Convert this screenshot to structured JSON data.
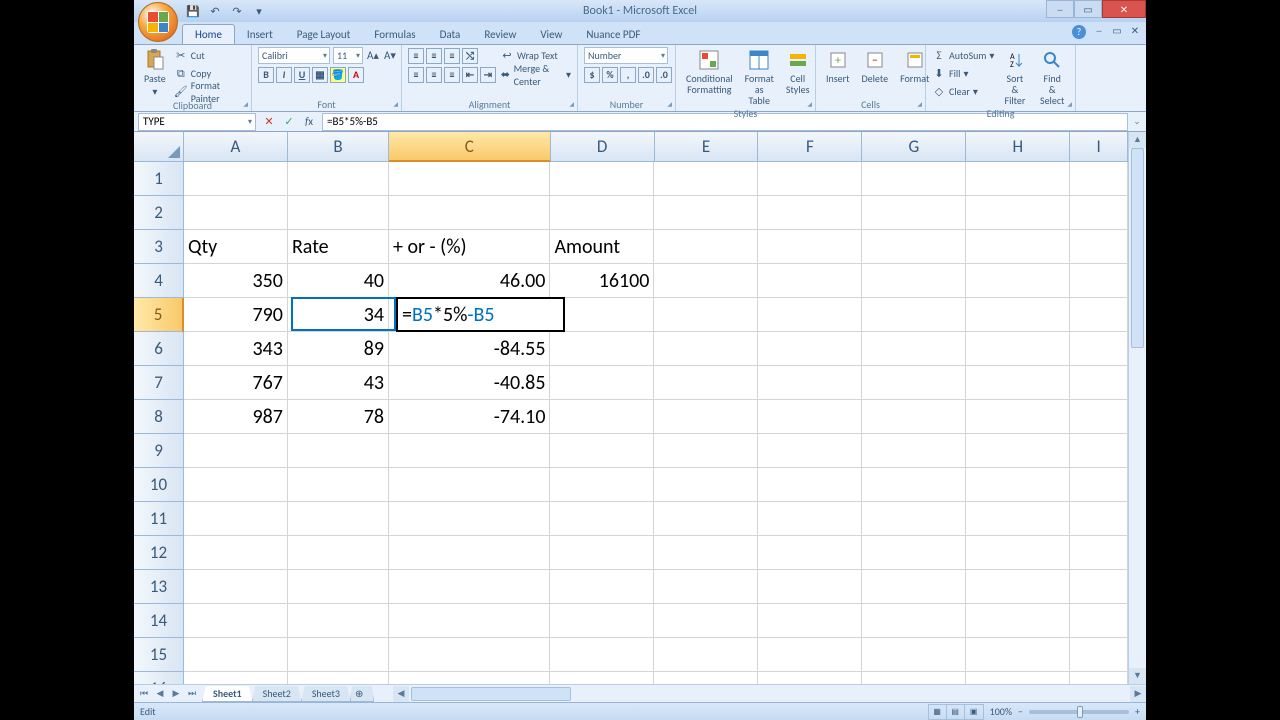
{
  "window": {
    "title": "Book1 - Microsoft Excel"
  },
  "qat": {
    "save": "💾",
    "undo": "↶",
    "redo": "↷"
  },
  "tabs": [
    "Home",
    "Insert",
    "Page Layout",
    "Formulas",
    "Data",
    "Review",
    "View",
    "Nuance PDF"
  ],
  "active_tab": "Home",
  "ribbon": {
    "clipboard": {
      "label": "Clipboard",
      "paste": "Paste",
      "cut": "Cut",
      "copy": "Copy",
      "painter": "Format Painter"
    },
    "font": {
      "label": "Font",
      "name": "Calibri",
      "size": "11"
    },
    "alignment": {
      "label": "Alignment",
      "wrap": "Wrap Text",
      "merge": "Merge & Center"
    },
    "number": {
      "label": "Number",
      "format": "Number"
    },
    "styles": {
      "label": "Styles",
      "cond": "Conditional\nFormatting",
      "table": "Format\nas Table",
      "cell": "Cell\nStyles"
    },
    "cells": {
      "label": "Cells",
      "insert": "Insert",
      "delete": "Delete",
      "format": "Format"
    },
    "editing": {
      "label": "Editing",
      "sum": "AutoSum",
      "fill": "Fill",
      "clear": "Clear",
      "sort": "Sort &\nFilter",
      "find": "Find &\nSelect"
    }
  },
  "formula_bar": {
    "namebox": "TYPE",
    "formula": "=B5*5%-B5"
  },
  "grid": {
    "col_widths": {
      "A": 108,
      "B": 105,
      "C": 168,
      "D": 108,
      "E": 108,
      "F": 108,
      "G": 108,
      "H": 108,
      "I": 60
    },
    "columns": [
      "A",
      "B",
      "C",
      "D",
      "E",
      "F",
      "G",
      "H",
      "I"
    ],
    "row_count": 17,
    "selected_col": "C",
    "selected_row": 5,
    "active_cell": "C5",
    "ref_cell": "B5",
    "headers": {
      "A3": "Qty",
      "B3": "Rate",
      "C3": "+ or - (%)",
      "D3": "Amount"
    },
    "data": {
      "A4": "350",
      "B4": "40",
      "C4": "46.00",
      "D4": "16100",
      "A5": "790",
      "B5": "34",
      "A6": "343",
      "B6": "89",
      "C6": "-84.55",
      "A7": "767",
      "B7": "43",
      "C7": "-40.85",
      "A8": "987",
      "B8": "78",
      "C8": "-74.10"
    },
    "edit_value": "=B5*5%-B5",
    "edit_parts": {
      "p1": "=B5",
      "p2": "*5%",
      "p3": "-B5"
    }
  },
  "sheets": {
    "list": [
      "Sheet1",
      "Sheet2",
      "Sheet3"
    ],
    "active": "Sheet1"
  },
  "status": {
    "mode": "Edit",
    "zoom": "100%"
  },
  "colors": {
    "accent": "#f9c96a",
    "ribbon_bg": "#e8f1fb"
  }
}
